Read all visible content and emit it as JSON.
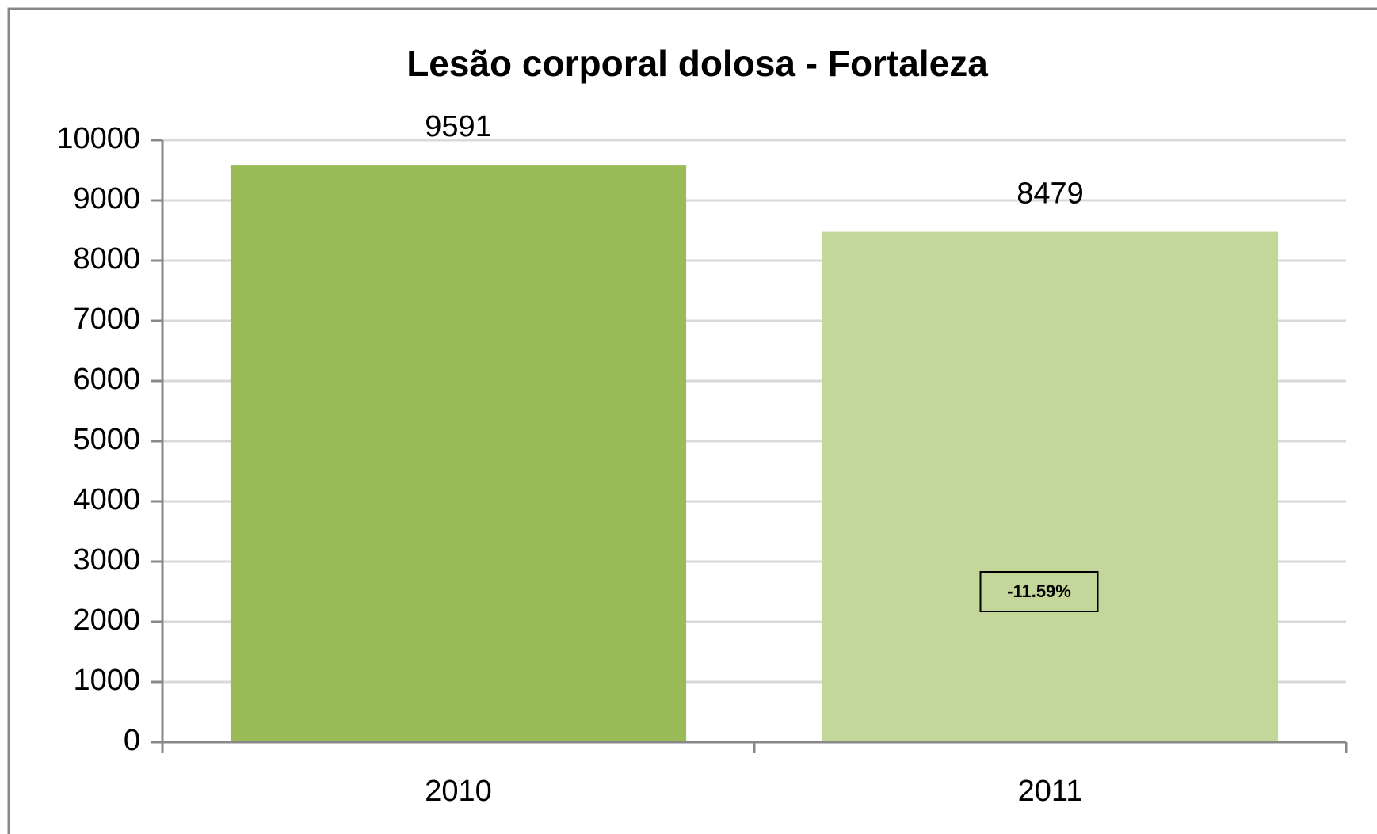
{
  "chart_data": {
    "type": "bar",
    "title": "Lesão corporal dolosa - Fortaleza",
    "categories": [
      "2010",
      "2011"
    ],
    "values": [
      9591,
      8479
    ],
    "colors": [
      "#9bbb59",
      "#c4d79b"
    ],
    "annotation": "-11.59%",
    "ylim": [
      0,
      10000
    ],
    "yticks": [
      0,
      1000,
      2000,
      3000,
      4000,
      5000,
      6000,
      7000,
      8000,
      9000,
      10000
    ],
    "grid": true
  }
}
